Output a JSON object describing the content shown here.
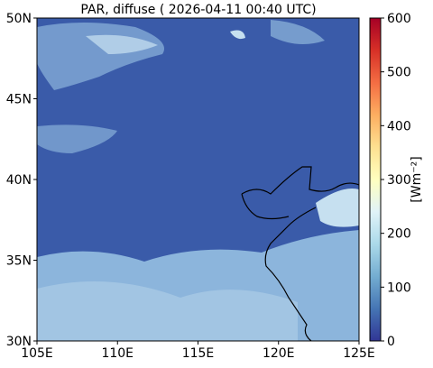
{
  "title": "PAR, diffuse ( 2026-04-11 00:40 UTC)",
  "map": {
    "lon_range": [
      105,
      125
    ],
    "lat_range": [
      30,
      50
    ],
    "xticks": [
      {
        "value": 105,
        "label": "105E"
      },
      {
        "value": 110,
        "label": "110E"
      },
      {
        "value": 115,
        "label": "115E"
      },
      {
        "value": 120,
        "label": "120E"
      },
      {
        "value": 125,
        "label": "125E"
      }
    ],
    "yticks": [
      {
        "value": 30,
        "label": "30N"
      },
      {
        "value": 35,
        "label": "35N"
      },
      {
        "value": 40,
        "label": "40N"
      },
      {
        "value": 45,
        "label": "45N"
      },
      {
        "value": 50,
        "label": "50N"
      }
    ]
  },
  "colorbar": {
    "label": "[Wm⁻²]",
    "range": [
      0,
      600
    ],
    "ticks": [
      0,
      100,
      200,
      300,
      400,
      500,
      600
    ]
  }
}
